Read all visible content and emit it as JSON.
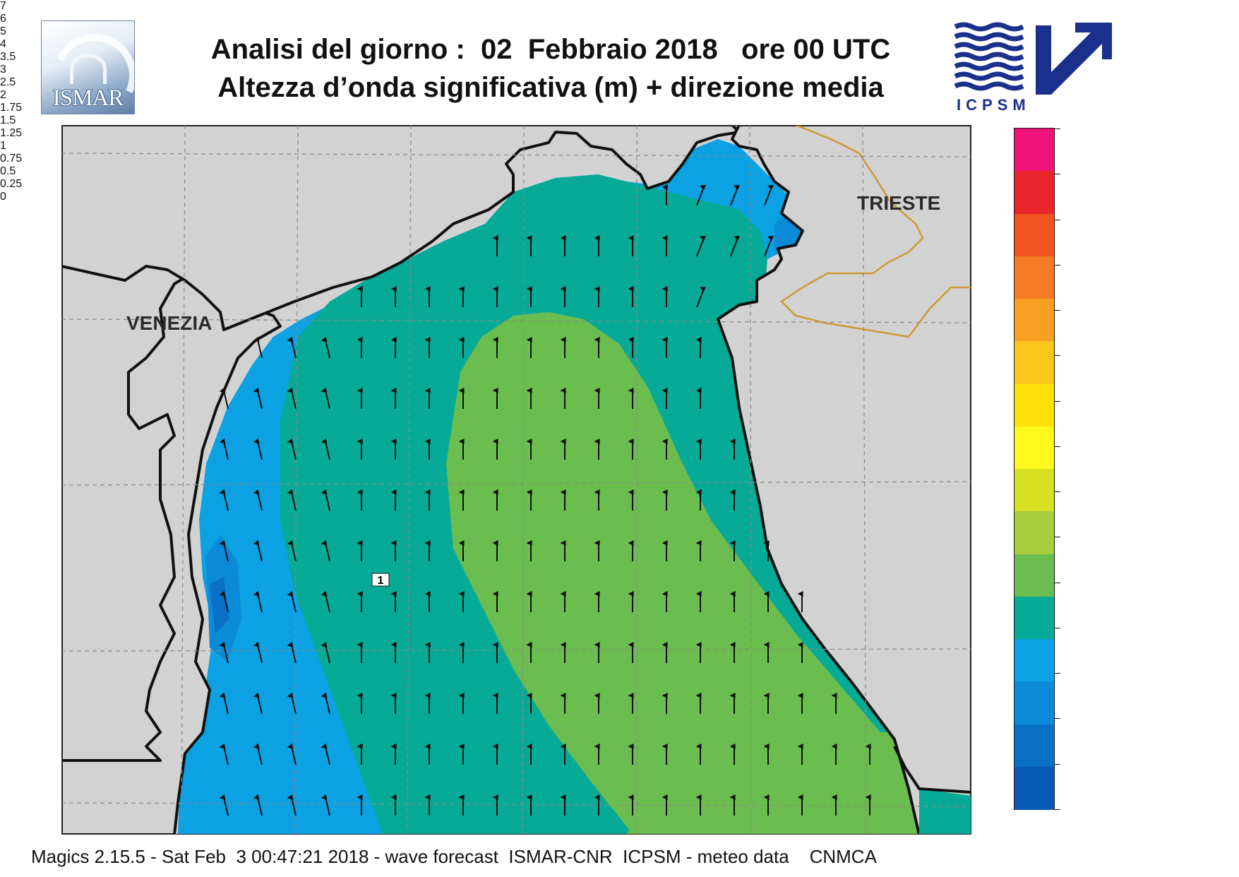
{
  "header": {
    "ismar_logo": "ISMAR",
    "title_line1": "Analisi del giorno :  02  Febbraio 2018   ore 00 UTC",
    "title_line2": "Altezza d’onda significativa (m) + direzione media",
    "icpsm_logo": "ICPSM"
  },
  "map": {
    "cities": [
      "VENEZIA",
      "TRIESTE"
    ],
    "contour_label": "1",
    "wave_direction": "north"
  },
  "legend": {
    "unit": "m",
    "labels": [
      "7",
      "6",
      "5",
      "4",
      "3.5",
      "3",
      "2.5",
      "2",
      "1.75",
      "1.5",
      "1.25",
      "1",
      "0.75",
      "0.5",
      "0.25",
      "0"
    ],
    "colors": [
      "#f0147a",
      "#e8252c",
      "#f0531e",
      "#f37c25",
      "#f8a024",
      "#fcc51b",
      "#ffe008",
      "#fff81c",
      "#d8e023",
      "#a8cc3c",
      "#6cbd4f",
      "#07aa96",
      "#0ba1e2",
      "#0b8ad8",
      "#0971c5",
      "#0759b5"
    ]
  },
  "footer": {
    "text": "Magics 2.15.5 - Sat Feb  3 00:47:21 2018 - wave forecast  ISMAR-CNR  ICPSM - meteo data    CNMCA"
  }
}
